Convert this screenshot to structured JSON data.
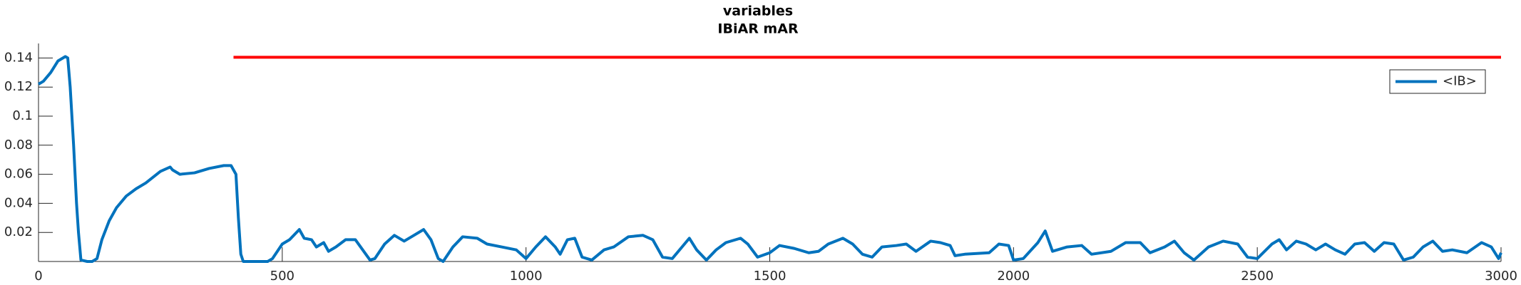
{
  "chart_data": {
    "type": "line",
    "title": [
      "variables",
      "IBiAR mAR"
    ],
    "xlim": [
      0,
      3000
    ],
    "xticks": [
      0,
      500,
      1000,
      1500,
      2000,
      2500,
      3000
    ],
    "ylim": [
      0,
      0.15
    ],
    "yticks": [
      0.02,
      0.04,
      0.06,
      0.08,
      0.1,
      0.12,
      0.14
    ],
    "legend": "northeast",
    "reference_line": {
      "x": [
        400,
        3000
      ],
      "values": [
        0.1405,
        0.1405
      ],
      "color": "#ff0000"
    },
    "series": [
      {
        "name": "<IB>",
        "color": "#0072bd",
        "x": [
          0,
          10,
          25,
          40,
          55,
          60,
          65,
          72,
          78,
          82,
          87,
          100,
          110,
          120,
          130,
          145,
          160,
          180,
          200,
          220,
          250,
          270,
          275,
          290,
          320,
          350,
          380,
          395,
          400,
          405,
          410,
          415,
          420,
          470,
          480,
          500,
          515,
          535,
          545,
          560,
          570,
          585,
          595,
          610,
          630,
          650,
          665,
          680,
          690,
          710,
          730,
          750,
          770,
          790,
          805,
          820,
          830,
          850,
          870,
          900,
          920,
          950,
          980,
          1000,
          1020,
          1040,
          1060,
          1070,
          1085,
          1100,
          1115,
          1135,
          1160,
          1180,
          1210,
          1240,
          1260,
          1280,
          1300,
          1320,
          1335,
          1350,
          1370,
          1390,
          1410,
          1440,
          1455,
          1475,
          1500,
          1520,
          1550,
          1580,
          1600,
          1620,
          1650,
          1670,
          1690,
          1710,
          1730,
          1760,
          1780,
          1800,
          1830,
          1850,
          1870,
          1880,
          1900,
          1950,
          1970,
          1990,
          2000,
          2020,
          2050,
          2065,
          2080,
          2110,
          2140,
          2160,
          2200,
          2230,
          2260,
          2280,
          2310,
          2330,
          2350,
          2370,
          2400,
          2430,
          2460,
          2480,
          2500,
          2530,
          2545,
          2560,
          2580,
          2600,
          2620,
          2640,
          2660,
          2680,
          2700,
          2720,
          2740,
          2760,
          2780,
          2800,
          2820,
          2840,
          2860,
          2880,
          2900,
          2930,
          2960,
          2980,
          2995,
          3000
        ],
        "values": [
          0.122,
          0.124,
          0.13,
          0.138,
          0.141,
          0.14,
          0.12,
          0.08,
          0.04,
          0.02,
          0.001,
          0,
          0,
          0.002,
          0.015,
          0.028,
          0.037,
          0.045,
          0.05,
          0.054,
          0.062,
          0.065,
          0.063,
          0.06,
          0.061,
          0.064,
          0.066,
          0.066,
          0.063,
          0.06,
          0.03,
          0.005,
          0,
          0,
          0.002,
          0.012,
          0.015,
          0.022,
          0.016,
          0.015,
          0.01,
          0.013,
          0.007,
          0.01,
          0.015,
          0.015,
          0.008,
          0.001,
          0.002,
          0.012,
          0.018,
          0.014,
          0.018,
          0.022,
          0.015,
          0.002,
          0,
          0.01,
          0.017,
          0.016,
          0.012,
          0.01,
          0.008,
          0.002,
          0.01,
          0.017,
          0.01,
          0.005,
          0.015,
          0.016,
          0.003,
          0.001,
          0.008,
          0.01,
          0.017,
          0.018,
          0.015,
          0.003,
          0.002,
          0.01,
          0.016,
          0.008,
          0.001,
          0.008,
          0.013,
          0.016,
          0.012,
          0.003,
          0.006,
          0.011,
          0.009,
          0.006,
          0.007,
          0.012,
          0.016,
          0.012,
          0.005,
          0.003,
          0.01,
          0.011,
          0.012,
          0.007,
          0.014,
          0.013,
          0.011,
          0.004,
          0.005,
          0.006,
          0.012,
          0.011,
          0.001,
          0.002,
          0.013,
          0.021,
          0.007,
          0.01,
          0.011,
          0.005,
          0.007,
          0.013,
          0.013,
          0.006,
          0.01,
          0.014,
          0.006,
          0.001,
          0.01,
          0.014,
          0.012,
          0.003,
          0.002,
          0.012,
          0.015,
          0.008,
          0.014,
          0.012,
          0.008,
          0.012,
          0.008,
          0.005,
          0.012,
          0.013,
          0.007,
          0.013,
          0.012,
          0.001,
          0.003,
          0.01,
          0.014,
          0.007,
          0.008,
          0.006,
          0.013,
          0.01,
          0.002,
          0.006
        ]
      }
    ]
  }
}
